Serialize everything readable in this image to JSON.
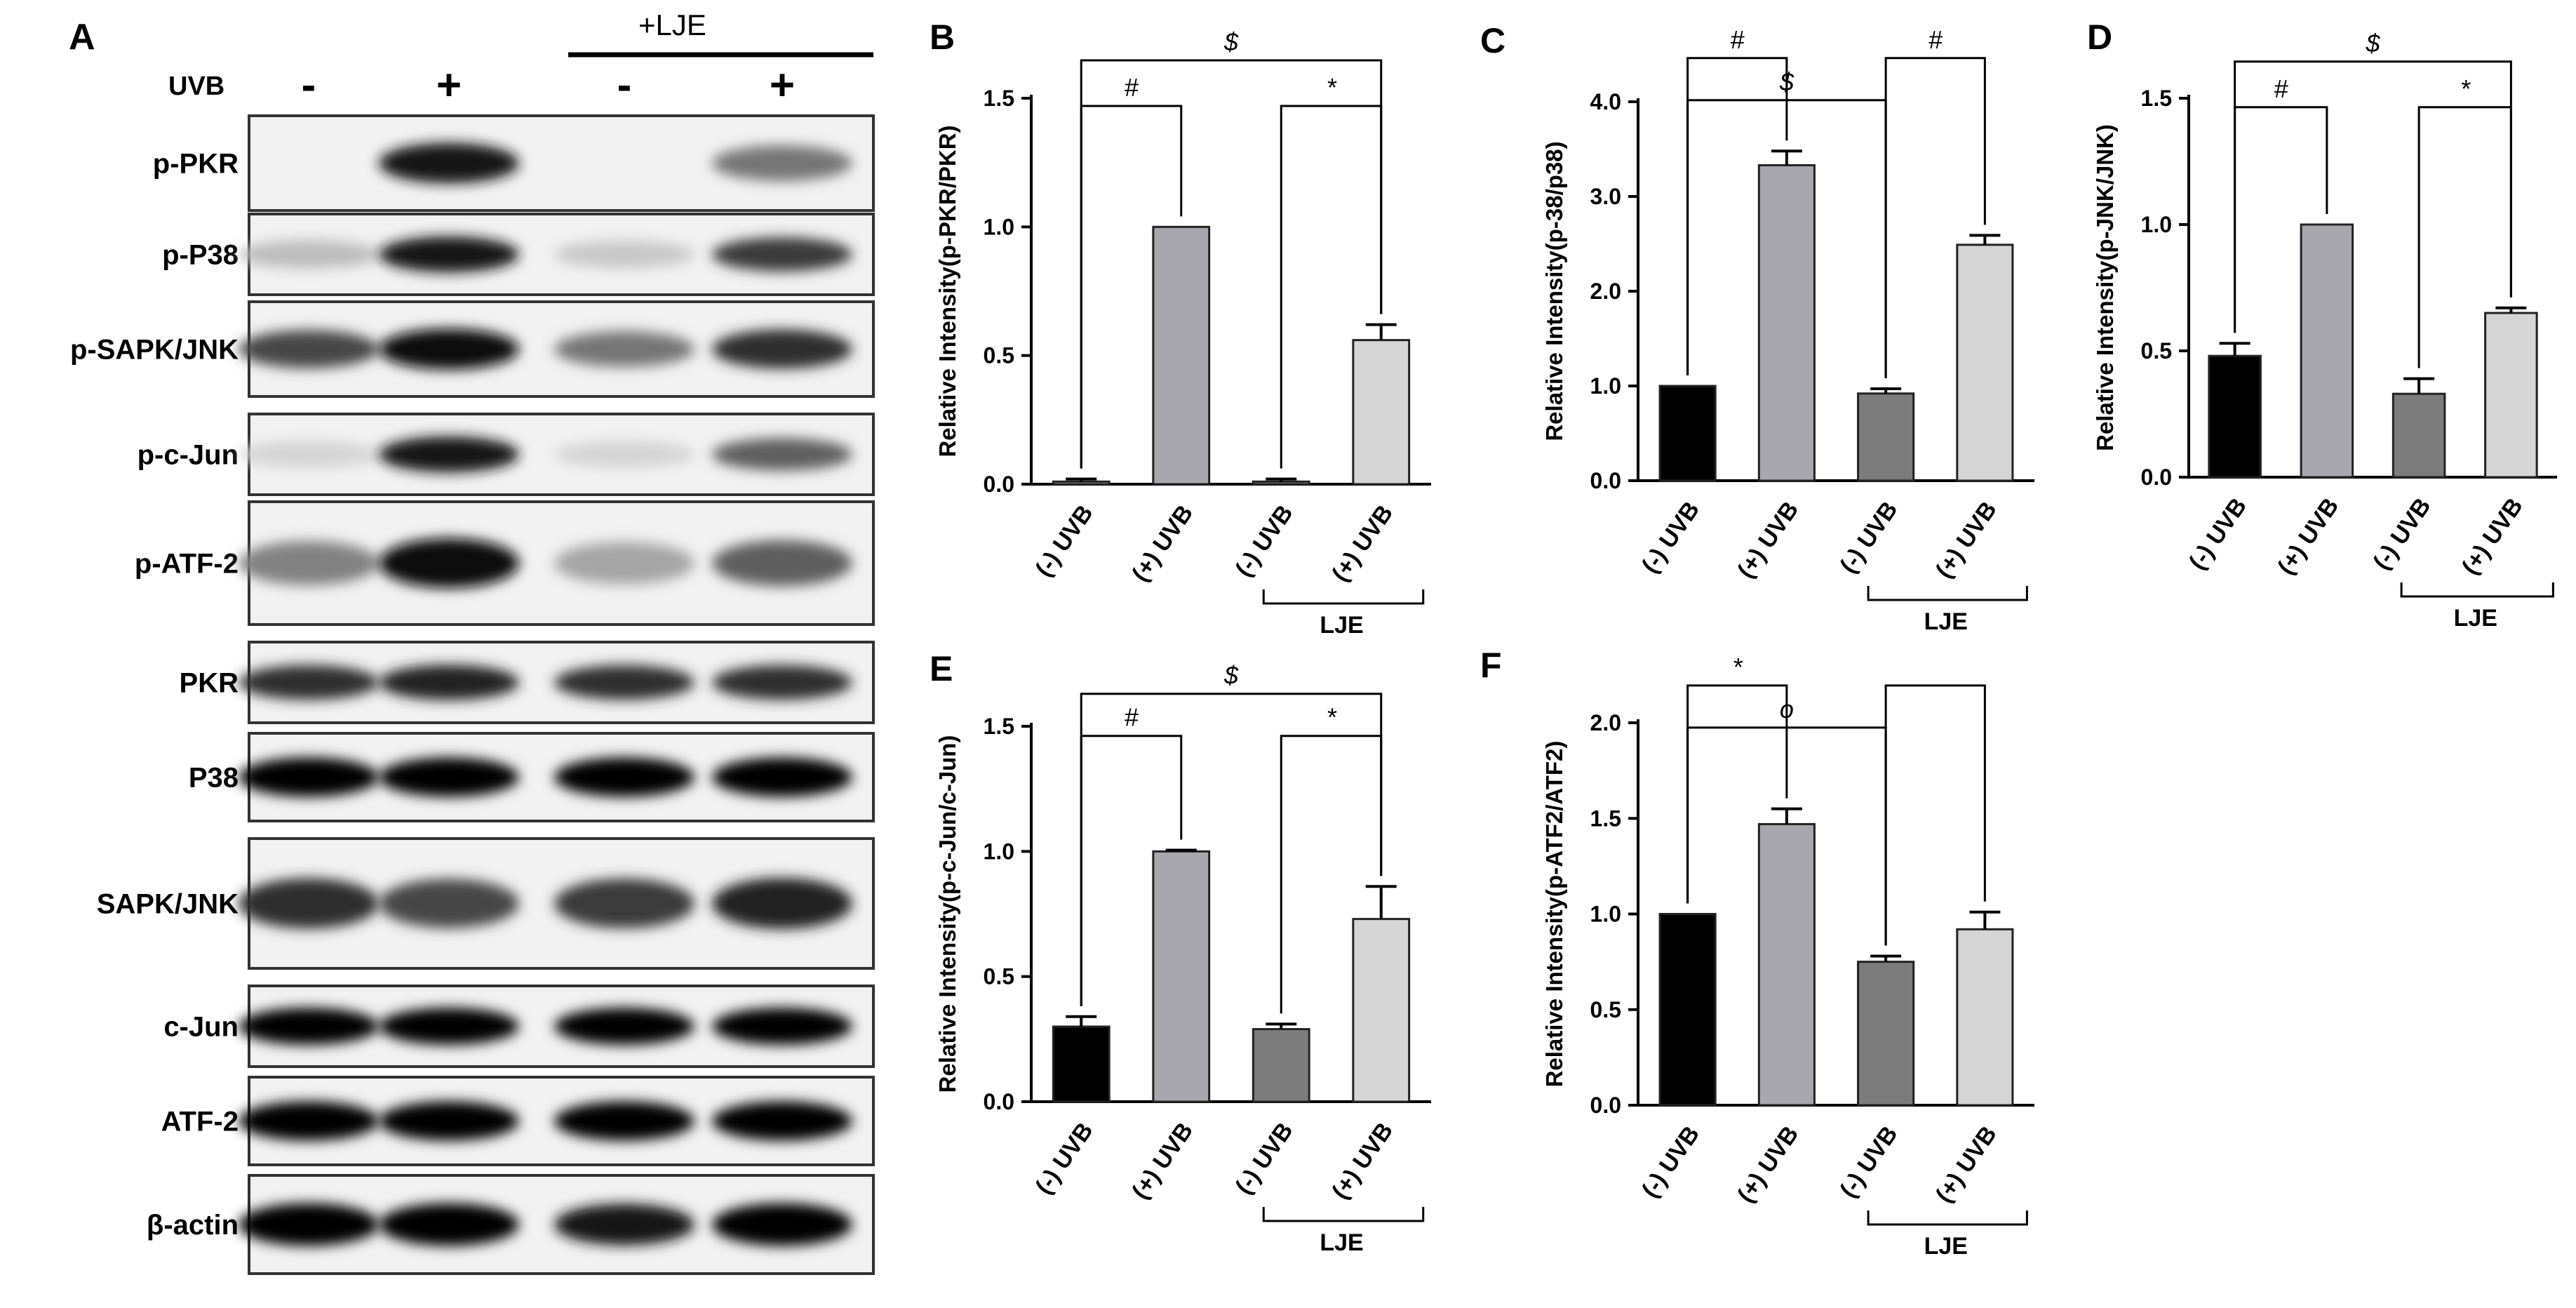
{
  "figure": {
    "panel_label": "A",
    "blot": {
      "treatment_row_label": "UVB",
      "ljE_header": "+LJE",
      "lane_signs": [
        "-",
        "+",
        "-",
        "+"
      ],
      "bands": [
        {
          "label": "p-PKR",
          "intensity": [
            0.0,
            0.9,
            0.0,
            0.5
          ]
        },
        {
          "label": "p-P38",
          "intensity": [
            0.2,
            0.9,
            0.15,
            0.75
          ]
        },
        {
          "label": "p-SAPK/JNK",
          "intensity": [
            0.7,
            0.95,
            0.5,
            0.8
          ]
        },
        {
          "label": "p-c-Jun",
          "intensity": [
            0.1,
            0.9,
            0.1,
            0.6
          ]
        },
        {
          "label": "p-ATF-2",
          "intensity": [
            0.45,
            0.95,
            0.3,
            0.6
          ]
        },
        {
          "label": "PKR",
          "intensity": [
            0.8,
            0.85,
            0.8,
            0.8
          ]
        },
        {
          "label": "P38",
          "intensity": [
            1.0,
            1.0,
            1.0,
            1.0
          ]
        },
        {
          "label": "SAPK/JNK",
          "intensity": [
            0.8,
            0.7,
            0.75,
            0.85
          ]
        },
        {
          "label": "c-Jun",
          "intensity": [
            1.0,
            1.0,
            1.0,
            1.0
          ]
        },
        {
          "label": "ATF-2",
          "intensity": [
            1.0,
            1.0,
            1.0,
            1.0
          ]
        },
        {
          "label": "β-actin",
          "intensity": [
            1.0,
            1.0,
            0.9,
            1.0
          ]
        }
      ]
    }
  },
  "chart_data": [
    {
      "panel": "B",
      "type": "bar",
      "ylabel": "Relative Intensity(p-PKR/PKR)",
      "categories": [
        "(-) UVB",
        "(+) UVB",
        "(-) UVB",
        "(+) UVB"
      ],
      "values": [
        0.01,
        1.0,
        0.01,
        0.56
      ],
      "errors": [
        0.01,
        0.0,
        0.01,
        0.06
      ],
      "ylim": [
        0,
        1.5
      ],
      "yticks": [
        "0.0",
        "0.5",
        "1.0",
        "1.5"
      ],
      "ytick_values": [
        0,
        0.5,
        1.0,
        1.5
      ],
      "bar_colors": [
        "#b8b8bf",
        "#a7a7ad",
        "#9c9ca0",
        "#d5d5d5"
      ],
      "group_label": "LJE",
      "sig_labels": [
        "#",
        "*",
        "$"
      ]
    },
    {
      "panel": "C",
      "type": "bar",
      "ylabel": "Relative Intensity(p-38/p38)",
      "categories": [
        "(-) UVB",
        "(+) UVB",
        "(-) UVB",
        "(+) UVB"
      ],
      "values": [
        1.0,
        3.33,
        0.92,
        2.49
      ],
      "errors": [
        0.0,
        0.15,
        0.05,
        0.1
      ],
      "ylim": [
        0,
        4.0
      ],
      "yticks": [
        "0.0",
        "1.0",
        "2.0",
        "3.0",
        "4.0"
      ],
      "ytick_values": [
        0,
        1,
        2,
        3,
        4
      ],
      "bar_colors": [
        "#000000",
        "#a7a7ad",
        "#7c7c7c",
        "#d5d5d5"
      ],
      "group_label": "LJE",
      "sig_labels": [
        "#",
        "#",
        "$"
      ]
    },
    {
      "panel": "D",
      "type": "bar",
      "ylabel": "Relative Intensity(p-JNK/JNK)",
      "categories": [
        "(-) UVB",
        "(+) UVB",
        "(-) UVB",
        "(+) UVB"
      ],
      "values": [
        0.48,
        1.0,
        0.33,
        0.65
      ],
      "errors": [
        0.05,
        0.0,
        0.06,
        0.02
      ],
      "ylim": [
        0,
        1.5
      ],
      "yticks": [
        "0.0",
        "0.5",
        "1.0",
        "1.5"
      ],
      "ytick_values": [
        0,
        0.5,
        1.0,
        1.5
      ],
      "bar_colors": [
        "#000000",
        "#a7a7ad",
        "#7c7c7c",
        "#d5d5d5"
      ],
      "group_label": "LJE",
      "sig_labels": [
        "#",
        "*",
        "$"
      ]
    },
    {
      "panel": "E",
      "type": "bar",
      "ylabel": "Relative Intensity(p-c-Jun/c-Jun)",
      "categories": [
        "(-) UVB",
        "(+) UVB",
        "(-) UVB",
        "(+) UVB"
      ],
      "values": [
        0.3,
        1.0,
        0.29,
        0.73
      ],
      "errors": [
        0.04,
        0.005,
        0.02,
        0.13
      ],
      "ylim": [
        0,
        1.5
      ],
      "yticks": [
        "0.0",
        "0.5",
        "1.0",
        "1.5"
      ],
      "ytick_values": [
        0,
        0.5,
        1.0,
        1.5
      ],
      "bar_colors": [
        "#000000",
        "#a7a7ad",
        "#7c7c7c",
        "#d5d5d5"
      ],
      "group_label": "LJE",
      "sig_labels": [
        "#",
        "*",
        "$"
      ]
    },
    {
      "panel": "F",
      "type": "bar",
      "ylabel": "Relative Intensity(p-ATF2/ATF2)",
      "categories": [
        "(-) UVB",
        "(+) UVB",
        "(-) UVB",
        "(+) UVB"
      ],
      "values": [
        1.0,
        1.47,
        0.75,
        0.92
      ],
      "errors": [
        0.0,
        0.08,
        0.03,
        0.09
      ],
      "ylim": [
        0,
        2.0
      ],
      "yticks": [
        "0.0",
        "0.5",
        "1.0",
        "1.5",
        "2.0"
      ],
      "ytick_values": [
        0,
        0.5,
        1.0,
        1.5,
        2.0
      ],
      "bar_colors": [
        "#000000",
        "#a7a7ad",
        "#7c7c7c",
        "#d5d5d5"
      ],
      "group_label": "LJE",
      "sig_labels": [
        "*",
        "",
        "o"
      ]
    }
  ]
}
